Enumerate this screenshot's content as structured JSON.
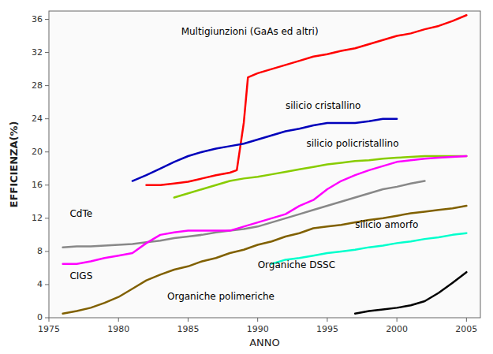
{
  "chart_data": {
    "type": "line",
    "xlabel": "ANNO",
    "ylabel": "EFFICIENZA(%)",
    "xlim": [
      1975,
      2006
    ],
    "ylim": [
      0,
      37
    ],
    "xticks": [
      1975,
      1980,
      1985,
      1990,
      1995,
      2000,
      2005
    ],
    "yticks": [
      0,
      4,
      8,
      12,
      16,
      20,
      24,
      28,
      32,
      36
    ],
    "grid": false,
    "series": [
      {
        "color": "#ff0000",
        "x": [
          1982,
          1983,
          1984,
          1985,
          1986,
          1987,
          1988,
          1988.5,
          1989,
          1989.3,
          1990,
          1991,
          1992,
          1993,
          1994,
          1995,
          1996,
          1997,
          1998,
          1999,
          2000,
          2001,
          2002,
          2003,
          2004,
          2005
        ],
        "values": [
          16.0,
          16.0,
          16.2,
          16.4,
          16.8,
          17.2,
          17.5,
          17.8,
          23.5,
          29.0,
          29.5,
          30.0,
          30.5,
          31.0,
          31.5,
          31.8,
          32.2,
          32.5,
          33.0,
          33.5,
          34.0,
          34.3,
          34.8,
          35.2,
          35.8,
          36.5
        ]
      },
      {
        "color": "#0000bb",
        "x": [
          1981,
          1982,
          1983,
          1984,
          1985,
          1986,
          1987,
          1988,
          1989,
          1990,
          1991,
          1992,
          1993,
          1994,
          1995,
          1996,
          1997,
          1998,
          1999,
          2000
        ],
        "values": [
          16.5,
          17.2,
          18.0,
          18.8,
          19.5,
          20.0,
          20.4,
          20.7,
          21.0,
          21.5,
          22.0,
          22.5,
          22.8,
          23.2,
          23.5,
          23.5,
          23.5,
          23.7,
          24.0,
          24.0
        ]
      },
      {
        "color": "#88cc00",
        "x": [
          1984,
          1985,
          1986,
          1987,
          1988,
          1989,
          1990,
          1991,
          1992,
          1993,
          1994,
          1995,
          1996,
          1997,
          1998,
          1999,
          2000,
          2001,
          2002,
          2003,
          2004,
          2005
        ],
        "values": [
          14.5,
          15.0,
          15.5,
          16.0,
          16.5,
          16.8,
          17.0,
          17.3,
          17.6,
          17.9,
          18.2,
          18.5,
          18.7,
          18.9,
          19.0,
          19.2,
          19.3,
          19.4,
          19.5,
          19.5,
          19.5,
          19.5
        ]
      },
      {
        "color": "#888888",
        "x": [
          1976,
          1977,
          1978,
          1979,
          1980,
          1981,
          1982,
          1983,
          1984,
          1985,
          1986,
          1987,
          1988,
          1989,
          1990,
          1991,
          1992,
          1993,
          1994,
          1995,
          1996,
          1997,
          1998,
          1999,
          2000,
          2001,
          2002
        ],
        "values": [
          8.5,
          8.6,
          8.6,
          8.7,
          8.8,
          8.9,
          9.1,
          9.3,
          9.6,
          9.8,
          10.0,
          10.3,
          10.5,
          10.7,
          11.0,
          11.5,
          12.0,
          12.5,
          13.0,
          13.5,
          14.0,
          14.5,
          15.0,
          15.5,
          15.8,
          16.2,
          16.5
        ]
      },
      {
        "color": "#ff00ff",
        "x": [
          1976,
          1977,
          1978,
          1979,
          1980,
          1981,
          1982,
          1983,
          1984,
          1985,
          1986,
          1987,
          1988,
          1989,
          1990,
          1991,
          1992,
          1993,
          1994,
          1995,
          1996,
          1997,
          1998,
          1999,
          2000,
          2001,
          2002,
          2003,
          2004,
          2005
        ],
        "values": [
          6.5,
          6.5,
          6.8,
          7.2,
          7.5,
          7.8,
          9.0,
          10.0,
          10.3,
          10.5,
          10.5,
          10.5,
          10.5,
          11.0,
          11.5,
          12.0,
          12.5,
          13.5,
          14.2,
          15.5,
          16.5,
          17.2,
          17.8,
          18.3,
          18.8,
          19.0,
          19.2,
          19.3,
          19.4,
          19.5
        ]
      },
      {
        "color": "#806000",
        "x": [
          1976,
          1977,
          1978,
          1979,
          1980,
          1981,
          1982,
          1983,
          1984,
          1985,
          1986,
          1987,
          1988,
          1989,
          1990,
          1991,
          1992,
          1993,
          1994,
          1995,
          1996,
          1997,
          1998,
          1999,
          2000,
          2001,
          2002,
          2003,
          2004,
          2005
        ],
        "values": [
          0.5,
          0.8,
          1.2,
          1.8,
          2.5,
          3.5,
          4.5,
          5.2,
          5.8,
          6.2,
          6.8,
          7.2,
          7.8,
          8.2,
          8.8,
          9.2,
          9.8,
          10.2,
          10.8,
          11.0,
          11.2,
          11.5,
          11.8,
          12.0,
          12.3,
          12.6,
          12.8,
          13.0,
          13.2,
          13.5
        ]
      },
      {
        "color": "#00ffcc",
        "x": [
          1991,
          1992,
          1993,
          1994,
          1995,
          1996,
          1997,
          1998,
          1999,
          2000,
          2001,
          2002,
          2003,
          2004,
          2005
        ],
        "values": [
          6.5,
          7.0,
          7.2,
          7.5,
          7.8,
          8.0,
          8.2,
          8.5,
          8.7,
          9.0,
          9.2,
          9.5,
          9.7,
          10.0,
          10.2
        ]
      },
      {
        "color": "#000000",
        "x": [
          1997,
          1998,
          1999,
          2000,
          2001,
          2002,
          2003,
          2004,
          2005
        ],
        "values": [
          0.5,
          0.8,
          1.0,
          1.2,
          1.5,
          2.0,
          3.0,
          4.2,
          5.5
        ]
      }
    ],
    "annotations": [
      {
        "text": "Multigiunzioni (GaAs ed altri)",
        "x": 1984.5,
        "y": 34.5
      },
      {
        "text": "silicio cristallino",
        "x": 1992,
        "y": 25.5
      },
      {
        "text": "silicio policristallino",
        "x": 1993.5,
        "y": 21.0
      },
      {
        "text": "CdTe",
        "x": 1976.5,
        "y": 12.5
      },
      {
        "text": "CIGS",
        "x": 1976.5,
        "y": 5.0
      },
      {
        "text": "silicio amorfo",
        "x": 1997,
        "y": 11.2
      },
      {
        "text": "Organiche DSSC",
        "x": 1990,
        "y": 6.3
      },
      {
        "text": "Organiche polimeriche",
        "x": 1983.5,
        "y": 2.5
      }
    ]
  }
}
